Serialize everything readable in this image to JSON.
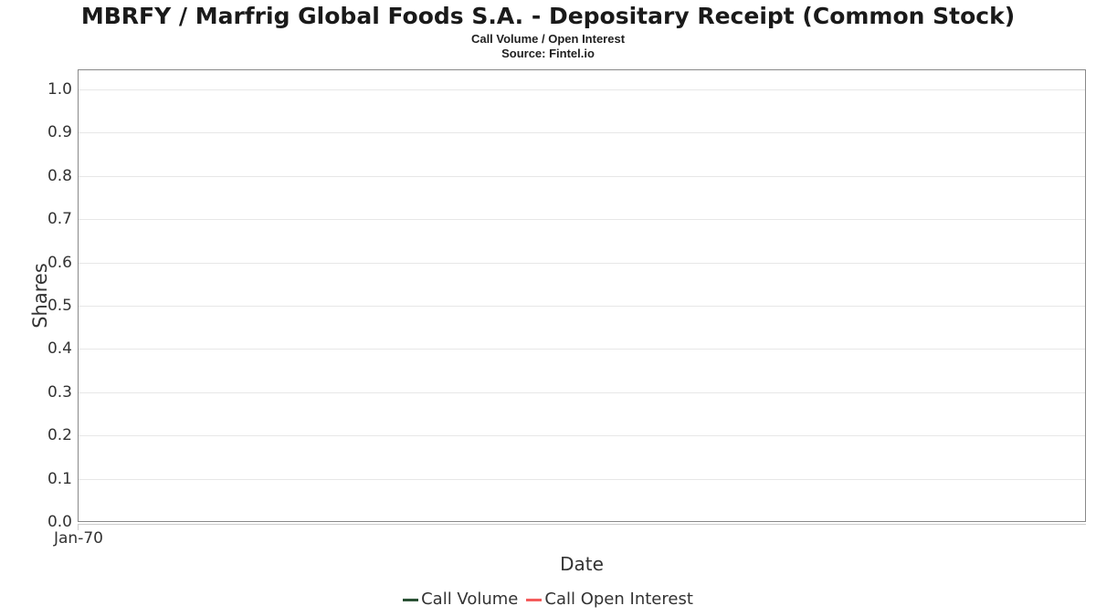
{
  "header": {
    "title": "MBRFY / Marfrig Global Foods S.A. - Depositary Receipt (Common Stock)",
    "subtitle": "Call Volume / Open Interest",
    "source": "Source: Fintel.io"
  },
  "chart_data": {
    "type": "line",
    "title": "MBRFY / Marfrig Global Foods S.A. - Depositary Receipt (Common Stock)",
    "subtitle": "Call Volume / Open Interest",
    "source": "Source: Fintel.io",
    "xlabel": "Date",
    "ylabel": "Shares",
    "x_ticks": [
      "Jan-70"
    ],
    "y_ticks": [
      "1.0",
      "0.9",
      "0.8",
      "0.7",
      "0.6",
      "0.5",
      "0.4",
      "0.3",
      "0.2",
      "0.1",
      "0.0"
    ],
    "ylim": [
      0.0,
      1.0
    ],
    "grid": true,
    "legend_position": "bottom",
    "series": [
      {
        "name": "Call Volume",
        "color": "#2a5134",
        "x": [],
        "values": []
      },
      {
        "name": "Call Open Interest",
        "color": "#f45b5b",
        "x": [],
        "values": []
      }
    ],
    "colors": {
      "grid": "#e7e7e7",
      "plot_border": "#898989",
      "axis_line": "#cccccc",
      "tick_text": "#333333",
      "title_text": "#1a1a1a"
    }
  }
}
